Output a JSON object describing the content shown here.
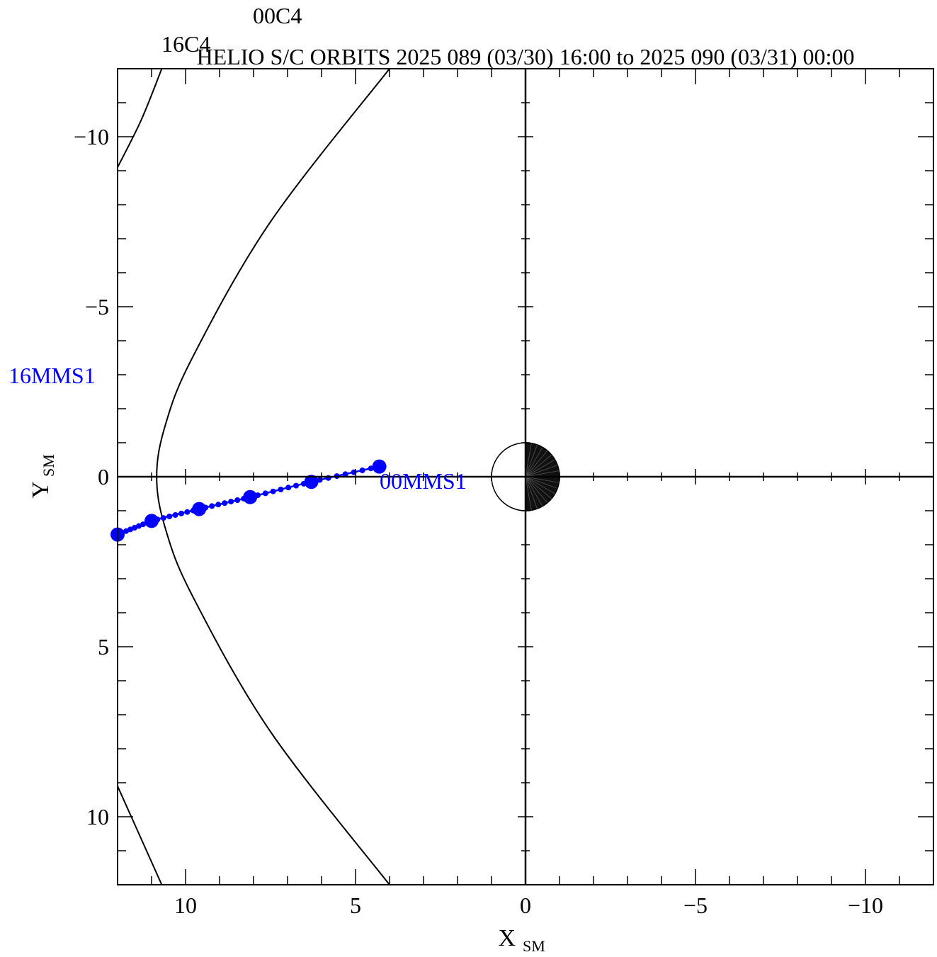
{
  "chart_data": {
    "type": "line",
    "title": "HELIO S/C ORBITS 2025 089 (03/30) 16:00 to 2025 090 (03/31) 00:00",
    "xlabel": "X",
    "xlabel_sub": "SM",
    "ylabel": "Y",
    "ylabel_sub": "SM",
    "xlim": [
      12,
      -12
    ],
    "ylim": [
      -12,
      12
    ],
    "y_axis_inverted": true,
    "grid": false,
    "x_ticks": [
      10,
      5,
      0,
      -5,
      -10
    ],
    "x_tick_labels": [
      "10",
      "5",
      "0",
      "−5",
      "−10"
    ],
    "y_ticks": [
      -10,
      -5,
      0,
      5,
      10
    ],
    "y_tick_labels": [
      "−10",
      "−5",
      "0",
      "5",
      "10"
    ],
    "colors": {
      "mms1": "#0000ff",
      "c4": "#000000",
      "axes": "#000000"
    },
    "earth": {
      "radius": 1.0,
      "night_side": "dark"
    },
    "series": [
      {
        "name": "MMS1",
        "color": "#0000ff",
        "start_label": "16MMS1",
        "end_label": "00MMS1",
        "x": [
          12.0,
          11.0,
          9.6,
          8.1,
          6.3,
          4.3
        ],
        "y": [
          1.7,
          1.3,
          0.95,
          0.6,
          0.15,
          -0.3
        ],
        "minor_point_count": 40
      },
      {
        "name": "C4",
        "color": "#000000",
        "start_label": "16C4",
        "end_label": "00C4",
        "x": [
          12.0,
          11.3,
          10.7
        ],
        "y": [
          -9.1,
          -10.5,
          -12.0
        ]
      }
    ],
    "boundaries": [
      {
        "kind": "magnetopause",
        "x": [
          4.0,
          7.5,
          9.8,
          10.6,
          10.85,
          10.6,
          9.8,
          7.5,
          4.0
        ],
        "y": [
          -12.0,
          -7.5,
          -3.5,
          -1.5,
          0.0,
          1.5,
          3.5,
          7.5,
          12.0
        ]
      },
      {
        "kind": "bow-shock",
        "x": [
          12.0,
          10.7
        ],
        "y": [
          9.1,
          12.0
        ]
      }
    ]
  }
}
